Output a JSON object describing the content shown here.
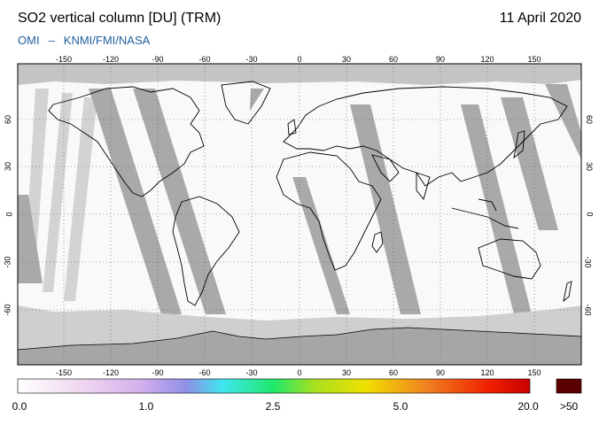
{
  "header": {
    "title": "SO2 vertical column [DU] (TRM)",
    "date": "11 April 2020",
    "credit_left": "OMI",
    "credit_sep": "–",
    "credit_right": "KNMI/FMI/NASA"
  },
  "map": {
    "lon_ticks": [
      "-150",
      "-120",
      "-90",
      "-60",
      "-30",
      "0",
      "30",
      "60",
      "90",
      "120",
      "150"
    ],
    "lat_ticks": [
      "60",
      "30",
      "0",
      "-30",
      "-60"
    ],
    "colors": {
      "ocean_fill": "#fbf8fb",
      "missing_gray": "#bdbdbd",
      "swath_gray": "#a9a9a9",
      "polar_gray": "#cfcfcf",
      "antarctica_gray": "#a6a6a6",
      "coast": "#000000"
    }
  },
  "colorbar": {
    "labels": [
      "0.0",
      "1.0",
      "2.5",
      "5.0",
      "20.0"
    ],
    "over_label": ">50",
    "over_color": "#5a0000",
    "gradient": [
      "#ffffff",
      "#f0d8f0",
      "#c8a8e8",
      "#8f8fe8",
      "#3ee6f0",
      "#20e86a",
      "#a8e020",
      "#f0e000",
      "#f08020",
      "#f02000",
      "#c80000"
    ]
  }
}
